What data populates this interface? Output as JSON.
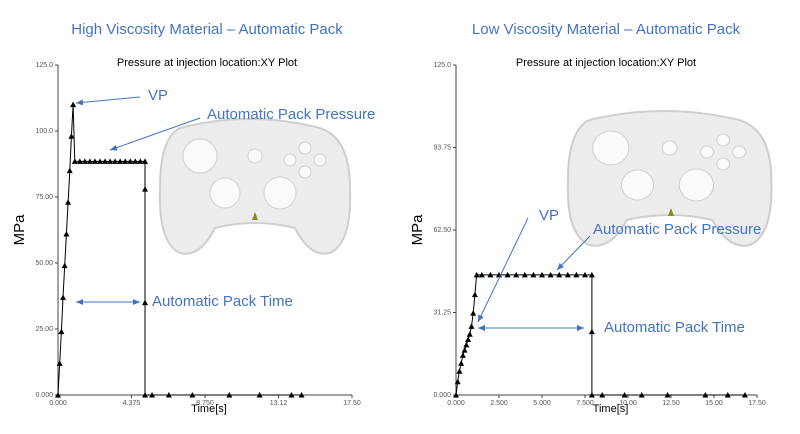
{
  "chart_data": [
    {
      "type": "line",
      "title": "High Viscosity Material – Automatic Pack",
      "subtitle": "Pressure at injection location:XY Plot",
      "xlabel": "Time[s]",
      "ylabel": "MPa",
      "color": "#000000",
      "marker": "triangle",
      "x": [
        0,
        0.1,
        0.2,
        0.3,
        0.4,
        0.5,
        0.6,
        0.7,
        0.8,
        0.9,
        1.0,
        1.3,
        1.6,
        1.9,
        2.2,
        2.5,
        2.8,
        3.1,
        3.4,
        3.7,
        4.0,
        4.3,
        4.6,
        4.9,
        5.18,
        5.18,
        5.18,
        5.18,
        5.6,
        6.6,
        8.0,
        10.2,
        12.0,
        13.9,
        14.5
      ],
      "values": [
        0,
        12,
        24,
        37,
        49,
        61,
        73,
        85,
        98,
        110,
        88.5,
        88.5,
        88.5,
        88.5,
        88.5,
        88.5,
        88.5,
        88.5,
        88.5,
        88.5,
        88.5,
        88.5,
        88.5,
        88.5,
        88.5,
        78,
        35,
        0,
        0,
        0,
        0,
        0,
        0,
        0,
        0
      ],
      "xlim": [
        0,
        17.5
      ],
      "ylim": [
        0,
        125
      ],
      "xticks": [
        {
          "value": 0,
          "label": "0.000"
        },
        4.375,
        {
          "value": 8.75,
          "label": "8.750"
        },
        {
          "value": 13.125,
          "label": "13.12"
        },
        {
          "value": 17.5,
          "label": "17.50"
        }
      ],
      "yticks": [
        {
          "value": 0,
          "label": "0.000"
        },
        {
          "value": 25,
          "label": "25.00"
        },
        {
          "value": 50,
          "label": "50.00"
        },
        {
          "value": 75,
          "label": "75.00"
        },
        {
          "value": 100,
          "label": "100.0"
        },
        {
          "value": 125,
          "label": "125.0"
        }
      ],
      "annotations": [
        "VP",
        "Automatic Pack Pressure",
        "Automatic Pack Time"
      ]
    },
    {
      "type": "line",
      "title": "Low Viscosity Material – Automatic Pack",
      "subtitle": "Pressure at injection location:XY Plot",
      "xlabel": "Time[s]",
      "ylabel": "MPa",
      "color": "#000000",
      "marker": "triangle",
      "x": [
        0,
        0.1,
        0.2,
        0.3,
        0.4,
        0.5,
        0.6,
        0.7,
        0.8,
        0.9,
        1.0,
        1.1,
        1.2,
        1.5,
        2.0,
        2.5,
        3.0,
        3.5,
        4.0,
        4.5,
        5.0,
        5.5,
        6.0,
        6.5,
        7.0,
        7.5,
        7.9,
        7.9,
        7.9,
        8.5,
        9.8,
        10.8,
        12.3,
        14.5,
        15.8,
        16.8
      ],
      "values": [
        0,
        5,
        9,
        12,
        15,
        17,
        19,
        21,
        23,
        26,
        31,
        38,
        45.5,
        45.5,
        45.5,
        45.5,
        45.5,
        45.5,
        45.5,
        45.5,
        45.5,
        45.5,
        45.5,
        45.5,
        45.5,
        45.5,
        45.5,
        24,
        0,
        0,
        0,
        0,
        0,
        0,
        0,
        0
      ],
      "xlim": [
        0,
        17.5
      ],
      "ylim": [
        0,
        125
      ],
      "xticks": [
        {
          "value": 0,
          "label": "0.000"
        },
        {
          "value": 2.5,
          "label": "2.500"
        },
        {
          "value": 5,
          "label": "5.000"
        },
        {
          "value": 7.5,
          "label": "7.500"
        },
        {
          "value": 10,
          "label": "10.00"
        },
        {
          "value": 12.5,
          "label": "12.50"
        },
        {
          "value": 15,
          "label": "15.00"
        },
        {
          "value": 17.5,
          "label": "17.50"
        }
      ],
      "yticks": [
        {
          "value": 0,
          "label": "0.000"
        },
        31.25,
        {
          "value": 62.5,
          "label": "62.50"
        },
        93.75,
        {
          "value": 125,
          "label": "125.0"
        }
      ],
      "annotations": [
        "VP",
        "Automatic Pack Pressure",
        "Automatic Pack Time"
      ]
    }
  ]
}
